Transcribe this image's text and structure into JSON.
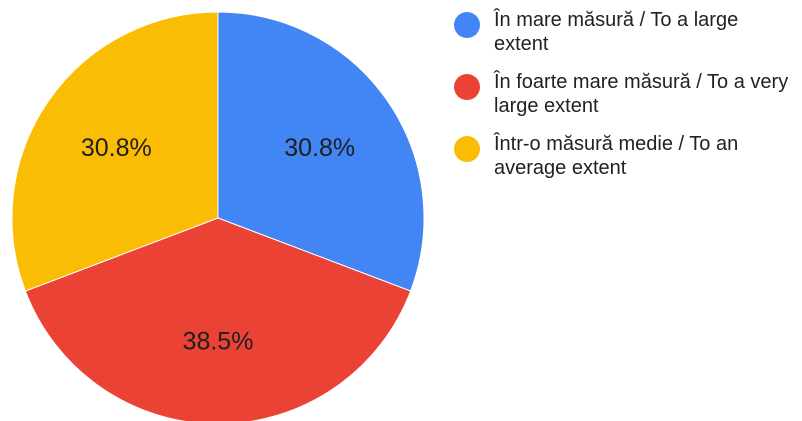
{
  "chart_data": {
    "type": "pie",
    "title": "",
    "legend": "right",
    "slices": [
      {
        "label": "În mare măsură / To a large extent",
        "value": 30.8,
        "display": "30.8%",
        "color": "#4285F4"
      },
      {
        "label": "În foarte mare măsură / To a very large extent",
        "value": 38.5,
        "display": "38.5%",
        "color": "#EA4335"
      },
      {
        "label": "Într-o măsură medie / To an average extent",
        "value": 30.8,
        "display": "30.8%",
        "color": "#FBBC04"
      }
    ]
  }
}
